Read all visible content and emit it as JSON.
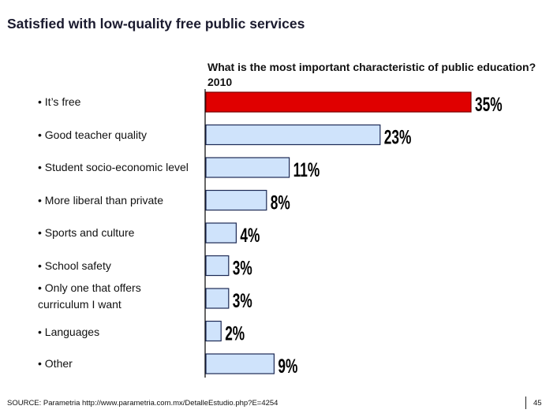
{
  "slide": {
    "title": "Satisfied with low-quality free public services",
    "source": "SOURCE: Parametria http://www.parametria.com.mx/DetalleEstudio.php?E=4254",
    "page_number": "45"
  },
  "chart_data": {
    "type": "bar",
    "orientation": "horizontal",
    "title": "What is the most important characteristic of public education? 2010",
    "xlabel": "",
    "ylabel": "",
    "unit": "%",
    "categories": [
      [
        "• It’s free"
      ],
      [
        "• Good teacher quality"
      ],
      [
        "• Student socio-economic level"
      ],
      [
        "• More liberal than private"
      ],
      [
        "• Sports and culture"
      ],
      [
        "• School safety"
      ],
      [
        "• Only one that offers",
        "curriculum I want"
      ],
      [
        "• Languages"
      ],
      [
        "• Other"
      ]
    ],
    "values": [
      35,
      23,
      11,
      8,
      4,
      3,
      3,
      2,
      9
    ],
    "value_labels": [
      "35%",
      "23%",
      "11%",
      "8%",
      "4%",
      "3%",
      "3%",
      "2%",
      "9%"
    ],
    "highlight_index": 0,
    "colors": {
      "highlight": "#e00000",
      "highlight_edge": "#7a0000",
      "bar": "#cfe3fb",
      "bar_edge": "#1d2a55",
      "axis": "#000000"
    },
    "grid": false,
    "legend": "none"
  }
}
